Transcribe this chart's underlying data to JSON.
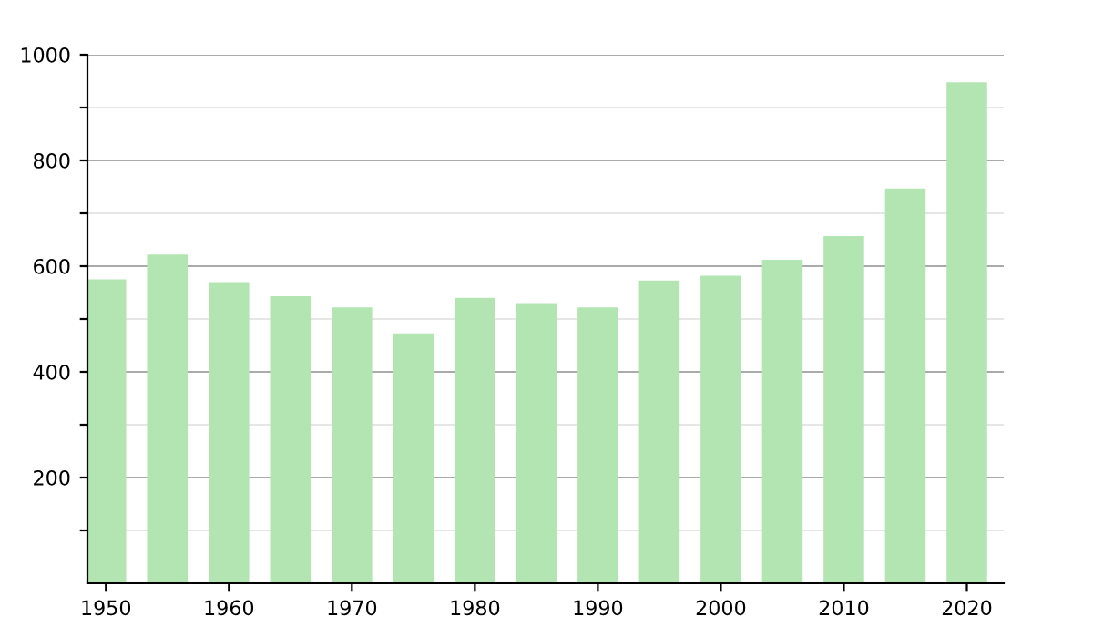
{
  "chart_data": {
    "type": "bar",
    "x": [
      1950,
      1955,
      1960,
      1965,
      1970,
      1975,
      1980,
      1985,
      1990,
      1995,
      2000,
      2005,
      2010,
      2015,
      2020
    ],
    "values": [
      575,
      622,
      570,
      543,
      522,
      473,
      540,
      530,
      522,
      573,
      582,
      612,
      657,
      747,
      948
    ],
    "color": "#b3e5b3",
    "xlim": [
      1948.5,
      2023
    ],
    "xticks": [
      1950,
      1960,
      1970,
      1980,
      1990,
      2000,
      2010,
      2020
    ],
    "ylim": [
      0,
      1000
    ],
    "yticks": [
      {
        "value": 100,
        "label": null
      },
      200,
      {
        "value": 300,
        "label": null
      },
      400,
      {
        "value": 500,
        "label": null
      },
      600,
      {
        "value": 700,
        "label": null
      },
      800,
      {
        "value": 900,
        "label": null
      },
      1000
    ],
    "grid": "y"
  }
}
